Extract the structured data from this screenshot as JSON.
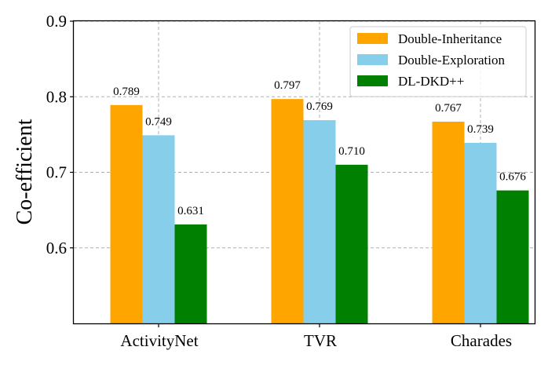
{
  "chart_data": {
    "type": "bar",
    "title": "",
    "xlabel": "",
    "ylabel": "Co-efficient",
    "ylim": [
      0.5,
      0.9
    ],
    "yticks": [
      0.6,
      0.7,
      0.8,
      0.9
    ],
    "ytick_labels": [
      "0.6",
      "0.7",
      "0.8",
      "0.9"
    ],
    "grid": true,
    "legend_position": "top-right",
    "categories": [
      "ActivityNet",
      "TVR",
      "Charades"
    ],
    "series": [
      {
        "name": "Double-Inheritance",
        "color": "#FFA500",
        "values": [
          0.789,
          0.797,
          0.767
        ],
        "labels": [
          "0.789",
          "0.797",
          "0.767"
        ]
      },
      {
        "name": "Double-Exploration",
        "color": "#87CEEB",
        "values": [
          0.749,
          0.769,
          0.739
        ],
        "labels": [
          "0.749",
          "0.769",
          "0.739"
        ]
      },
      {
        "name": "DL-DKD++",
        "color": "#008000",
        "values": [
          0.631,
          0.71,
          0.676
        ],
        "labels": [
          "0.631",
          "0.710",
          "0.676"
        ]
      }
    ]
  }
}
